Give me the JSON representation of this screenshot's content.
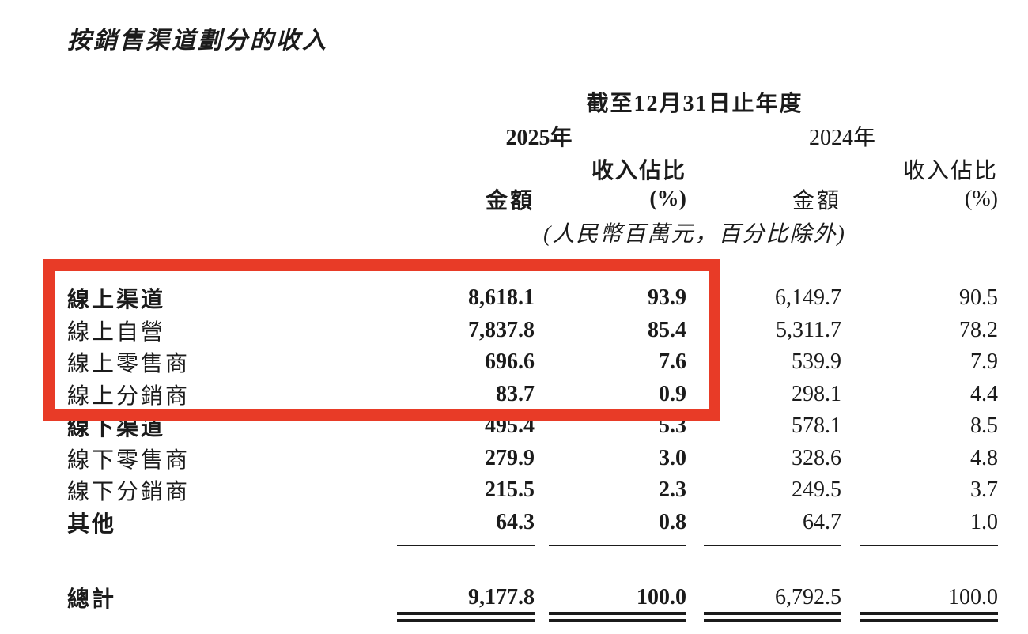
{
  "title": "按銷售渠道劃分的收入",
  "table": {
    "period_header": "截至12月31日止年度",
    "year_2025": "2025年",
    "year_2024": "2024年",
    "share_header": "收入佔比",
    "amount_header": "金額",
    "percent_header": "(%)",
    "unit_note": "(人民幣百萬元，百分比除外)",
    "rows": [
      {
        "label": "線上渠道",
        "amount_2025": "8,618.1",
        "pct_2025": "93.9",
        "amount_2024": "6,149.7",
        "pct_2024": "90.5"
      },
      {
        "label": "線上自營",
        "amount_2025": "7,837.8",
        "pct_2025": "85.4",
        "amount_2024": "5,311.7",
        "pct_2024": "78.2"
      },
      {
        "label": "線上零售商",
        "amount_2025": "696.6",
        "pct_2025": "7.6",
        "amount_2024": "539.9",
        "pct_2024": "7.9"
      },
      {
        "label": "線上分銷商",
        "amount_2025": "83.7",
        "pct_2025": "0.9",
        "amount_2024": "298.1",
        "pct_2024": "4.4"
      },
      {
        "label": "線下渠道",
        "amount_2025": "495.4",
        "pct_2025": "5.3",
        "amount_2024": "578.1",
        "pct_2024": "8.5"
      },
      {
        "label": "線下零售商",
        "amount_2025": "279.9",
        "pct_2025": "3.0",
        "amount_2024": "328.6",
        "pct_2024": "4.8"
      },
      {
        "label": "線下分銷商",
        "amount_2025": "215.5",
        "pct_2025": "2.3",
        "amount_2024": "249.5",
        "pct_2024": "3.7"
      },
      {
        "label": "其他",
        "amount_2025": "64.3",
        "pct_2025": "0.8",
        "amount_2024": "64.7",
        "pct_2024": "1.0"
      }
    ],
    "total": {
      "label": "總計",
      "amount_2025": "9,177.8",
      "pct_2025": "100.0",
      "amount_2024": "6,792.5",
      "pct_2024": "100.0"
    }
  },
  "highlight_color": "#e83b27"
}
